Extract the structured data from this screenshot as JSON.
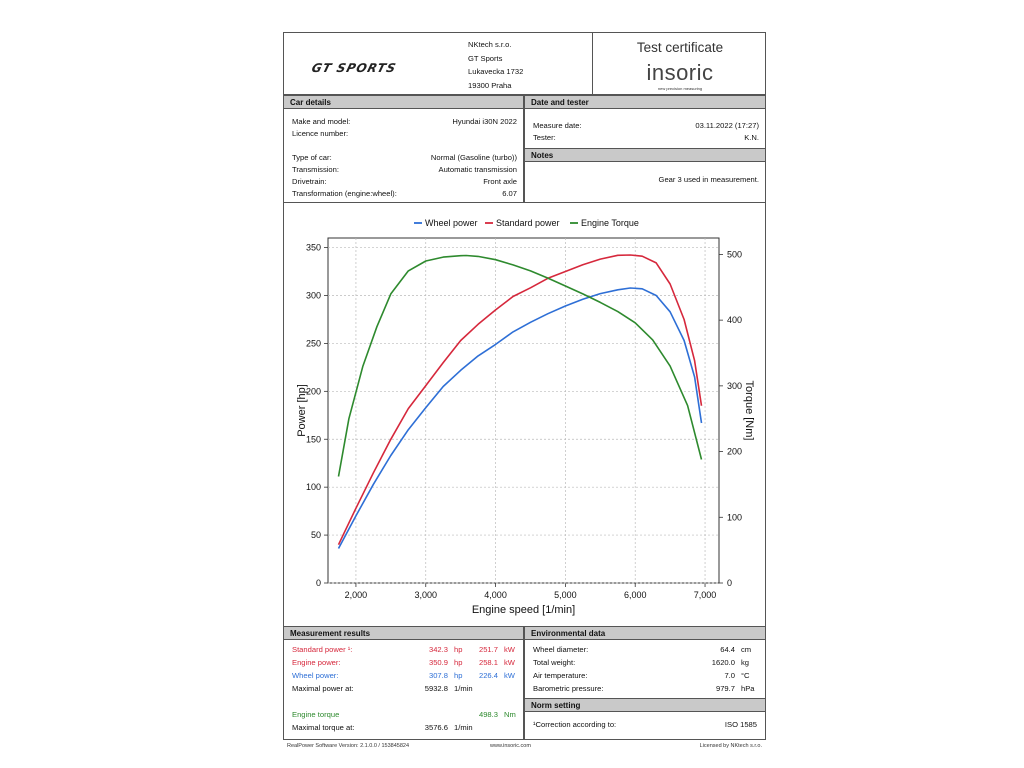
{
  "header": {
    "logo_text": "GT SPORTS",
    "company": [
      "NKtech s.r.o.",
      "GT Sports",
      "Lukavecka 1732",
      "19300 Praha"
    ],
    "cert_title": "Test certificate",
    "brand": "insoric",
    "brand_tagline": "new precision measuring"
  },
  "car": {
    "title": "Car details",
    "make_label": "Make and model:",
    "make_value": "Hyundai i30N 2022",
    "licence_label": "Licence number:",
    "licence_value": "",
    "type_label": "Type of car:",
    "type_value": "Normal (Gasoline (turbo))",
    "trans_label": "Transmission:",
    "trans_value": "Automatic transmission",
    "drive_label": "Drivetrain:",
    "drive_value": "Front axle",
    "transf_label": "Transformation (engine:wheel):",
    "transf_value": "6.07"
  },
  "date": {
    "title": "Date and tester",
    "date_label": "Measure date:",
    "date_value": "03.11.2022 (17:27)",
    "tester_label": "Tester:",
    "tester_value": "K.N."
  },
  "notes": {
    "title": "Notes",
    "text": "Gear 3 used in measurement."
  },
  "results": {
    "title": "Measurement results",
    "std_label": "Standard power ¹:",
    "std_hp": "342.3",
    "std_kw": "251.7",
    "eng_label": "Engine power:",
    "eng_hp": "350.9",
    "eng_kw": "258.1",
    "wheel_label": "Wheel power:",
    "wheel_hp": "307.8",
    "wheel_kw": "226.4",
    "maxp_label": "Maximal power at:",
    "maxp_rpm": "5932.8",
    "tq_label": "Engine torque",
    "tq_nm": "498.3",
    "maxtq_label": "Maximal torque at:",
    "maxtq_rpm": "3576.6",
    "u_hp": "hp",
    "u_kw": "kW",
    "u_rpm": "1/min",
    "u_nm": "Nm"
  },
  "env": {
    "title": "Environmental data",
    "diam_label": "Wheel diameter:",
    "diam_value": "64.4",
    "diam_unit": "cm",
    "weight_label": "Total weight:",
    "weight_value": "1620.0",
    "weight_unit": "kg",
    "temp_label": "Air temperature:",
    "temp_value": "7.0",
    "temp_unit": "°C",
    "baro_label": "Barometric pressure:",
    "baro_value": "979.7",
    "baro_unit": "hPa"
  },
  "norm": {
    "title": "Norm setting",
    "label": "¹Correction according to:",
    "value": "ISO 1585"
  },
  "footer": {
    "left": "RealPower Software Version: 2.1.0.0 / 153845824",
    "mid": "www.insoric.com",
    "right": "Licensed by NKtech s.r.o."
  },
  "colors": {
    "wheel": "#2e6fd6",
    "standard": "#d6283c",
    "torque": "#2e8a2e"
  },
  "chart_data": {
    "type": "line",
    "xlabel": "Engine speed [1/min]",
    "ylabel": "Power [hp]",
    "y2label": "Torque [Nm]",
    "xlim": [
      1600,
      7200
    ],
    "ylim": [
      0,
      360
    ],
    "y2lim": [
      0,
      525
    ],
    "xticks": [
      2000,
      3000,
      4000,
      5000,
      6000,
      7000
    ],
    "xtick_labels": [
      "2,000",
      "3,000",
      "4,000",
      "5,000",
      "6,000",
      "7,000"
    ],
    "yticks": [
      0,
      50,
      100,
      150,
      200,
      250,
      300,
      350
    ],
    "y2ticks": [
      0,
      100,
      200,
      300,
      400,
      500
    ],
    "grid": true,
    "legend": "top",
    "series": [
      {
        "name": "Wheel power",
        "axis": "left",
        "color": "#2e6fd6",
        "x": [
          1750,
          2000,
          2250,
          2500,
          2750,
          3000,
          3250,
          3500,
          3750,
          4000,
          4250,
          4500,
          4750,
          5000,
          5250,
          5500,
          5750,
          5930,
          6100,
          6300,
          6500,
          6700,
          6850,
          6950
        ],
        "y": [
          36,
          70,
          103,
          133,
          160,
          183,
          205,
          222,
          237,
          249,
          262,
          272,
          281,
          289,
          296,
          302,
          306,
          307.8,
          307,
          300,
          283,
          253,
          215,
          167
        ]
      },
      {
        "name": "Standard power",
        "axis": "left",
        "color": "#d6283c",
        "x": [
          1750,
          2000,
          2250,
          2500,
          2750,
          3000,
          3250,
          3500,
          3750,
          4000,
          4250,
          4500,
          4750,
          5000,
          5250,
          5500,
          5750,
          5930,
          6100,
          6300,
          6500,
          6700,
          6850,
          6950
        ],
        "y": [
          40,
          78,
          115,
          150,
          182,
          206,
          230,
          253,
          270,
          285,
          299,
          308,
          318,
          325,
          332,
          338,
          342,
          342.3,
          341,
          334,
          312,
          275,
          232,
          185
        ]
      },
      {
        "name": "Engine Torque",
        "axis": "right",
        "color": "#2e8a2e",
        "x": [
          1750,
          1900,
          2100,
          2300,
          2500,
          2750,
          3000,
          3250,
          3500,
          3580,
          3750,
          4000,
          4250,
          4500,
          4750,
          5000,
          5250,
          5500,
          5750,
          6000,
          6250,
          6500,
          6750,
          6950
        ],
        "y": [
          162,
          250,
          330,
          390,
          440,
          475,
          490,
          496,
          498,
          498.3,
          497,
          492,
          484,
          475,
          464,
          452,
          440,
          427,
          413,
          396,
          370,
          330,
          270,
          188
        ]
      }
    ]
  }
}
